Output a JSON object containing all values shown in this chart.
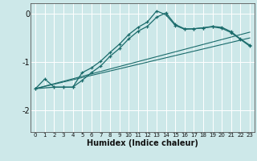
{
  "xlabel": "Humidex (Indice chaleur)",
  "bg_color": "#cde8e9",
  "grid_color": "#ffffff",
  "line_color": "#1a6b6b",
  "xlim": [
    -0.5,
    23.5
  ],
  "ylim": [
    -2.45,
    0.22
  ],
  "x_ticks": [
    0,
    1,
    2,
    3,
    4,
    5,
    6,
    7,
    8,
    9,
    10,
    11,
    12,
    13,
    14,
    15,
    16,
    17,
    18,
    19,
    20,
    21,
    22,
    23
  ],
  "y_ticks": [
    0,
    -1,
    -2
  ],
  "main_x": [
    0,
    1,
    2,
    3,
    4,
    5,
    6,
    7,
    8,
    9,
    10,
    11,
    12,
    13,
    14,
    15,
    16,
    17,
    18,
    19,
    20,
    21,
    22,
    23
  ],
  "main_y": [
    -1.55,
    -1.35,
    -1.52,
    -1.52,
    -1.52,
    -1.38,
    -1.22,
    -1.08,
    -0.88,
    -0.72,
    -0.52,
    -0.36,
    -0.26,
    -0.07,
    0.02,
    -0.22,
    -0.31,
    -0.31,
    -0.29,
    -0.26,
    -0.28,
    -0.37,
    -0.52,
    -0.65
  ],
  "inner_x": [
    0,
    2,
    3,
    4,
    5,
    6,
    7,
    8,
    9,
    10,
    11,
    12,
    13,
    14,
    15,
    16,
    17,
    18,
    19,
    20,
    21,
    22,
    23
  ],
  "inner_y": [
    -1.55,
    -1.52,
    -1.52,
    -1.52,
    -1.22,
    -1.12,
    -0.98,
    -0.8,
    -0.63,
    -0.43,
    -0.28,
    -0.17,
    0.06,
    -0.02,
    -0.24,
    -0.32,
    -0.31,
    -0.29,
    -0.27,
    -0.3,
    -0.39,
    -0.53,
    -0.67
  ],
  "trend1_x": [
    0,
    23
  ],
  "trend1_y": [
    -1.55,
    -0.5
  ],
  "trend2_x": [
    0,
    23
  ],
  "trend2_y": [
    -1.55,
    -0.38
  ]
}
